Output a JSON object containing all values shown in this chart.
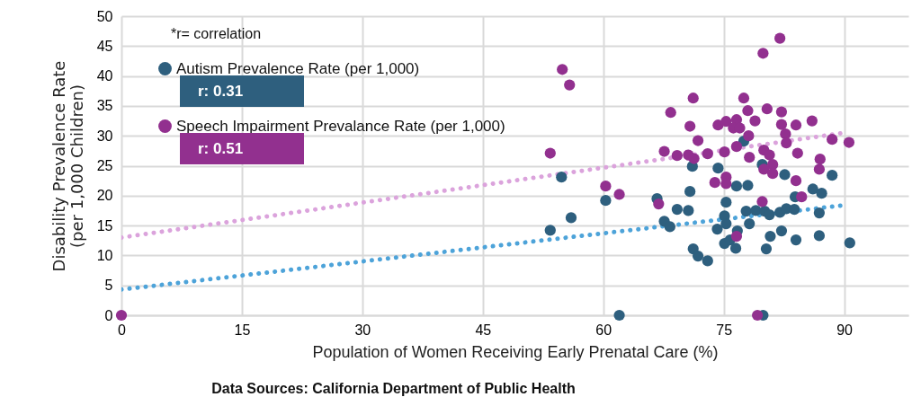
{
  "chart_data": {
    "type": "scatter",
    "xlabel": "Population of Women Receiving Early Prenatal Care (%)",
    "ylabel": "Disability Prevalence Rate (per 1,000 Children)",
    "xlim": [
      0,
      98
    ],
    "xticks": [
      0,
      15,
      30,
      45,
      60,
      75,
      90
    ],
    "ylim": [
      0,
      50
    ],
    "yticks": [
      0,
      5,
      10,
      15,
      20,
      25,
      30,
      35,
      40,
      45,
      50
    ],
    "grid": true,
    "legend": "top left",
    "marker": "circle",
    "annotations": [
      "*r= correlation",
      "r: 0.31",
      "r: 0.51",
      "Data Sources: California Department of Public Health"
    ],
    "series": [
      {
        "name": "Autism Prevalence Rate (per 1,000)",
        "color": "#2e5f7e",
        "x": [
          54.8,
          74.3,
          71.1,
          82.6,
          88.5,
          76.6,
          78.0,
          70.8,
          86.1,
          87.2,
          83.9,
          60.3,
          66.7,
          75.3,
          69.2,
          70.6,
          77.8,
          79.0,
          80.1,
          80.7,
          82.0,
          82.8,
          83.8,
          86.9,
          56.0,
          75.1,
          67.6,
          68.3,
          75.3,
          78.2,
          53.4,
          74.2,
          76.7,
          82.2,
          80.8,
          84.0,
          86.9,
          90.7,
          75.1,
          75.8,
          76.5,
          80.3,
          71.2,
          71.8,
          73.0,
          62.0,
          79.9,
          77.5,
          79.8
        ],
        "values": [
          23.1,
          24.6,
          24.9,
          23.5,
          23.4,
          21.6,
          21.7,
          20.7,
          21.1,
          20.4,
          19.8,
          19.2,
          19.5,
          18.9,
          17.7,
          17.5,
          17.4,
          17.5,
          17.4,
          16.8,
          17.2,
          17.8,
          17.7,
          17.1,
          16.3,
          16.6,
          15.7,
          14.8,
          15.3,
          15.3,
          14.2,
          14.4,
          14.1,
          14.1,
          13.2,
          12.6,
          13.3,
          12.1,
          12.0,
          12.6,
          11.2,
          11.1,
          11.1,
          9.9,
          9.1,
          0,
          0,
          29.1,
          25.2
        ]
      },
      {
        "name": "Speech Impairment Prevalance Rate (per 1,000)",
        "color": "#92308f",
        "x": [
          54.9,
          55.8,
          53.4,
          71.2,
          77.5,
          82.0,
          79.9,
          68.4,
          78.0,
          80.4,
          82.2,
          86.0,
          78.9,
          70.8,
          74.3,
          75.3,
          76.6,
          76.2,
          77.0,
          82.2,
          84.0,
          78.1,
          82.7,
          71.8,
          82.8,
          88.5,
          90.6,
          76.6,
          67.6,
          80.0,
          69.2,
          70.6,
          71.3,
          73.0,
          75.1,
          80.7,
          78.2,
          84.2,
          87.0,
          81.1,
          80.0,
          81.1,
          86.9,
          75.3,
          73.9,
          75.3,
          84.0,
          60.3,
          62.0,
          84.7,
          79.8,
          66.9,
          76.6,
          79.2,
          0
        ],
        "values": [
          41.1,
          38.5,
          27.1,
          36.3,
          36.3,
          46.3,
          43.8,
          33.9,
          34.2,
          34.5,
          34.0,
          32.5,
          32.5,
          31.6,
          31.8,
          32.4,
          32.7,
          31.3,
          31.3,
          31.9,
          31.8,
          30.0,
          30.3,
          29.2,
          28.8,
          29.4,
          28.9,
          28.2,
          27.4,
          27.6,
          26.7,
          26.8,
          26.2,
          27.0,
          27.3,
          26.8,
          26.4,
          27.1,
          26.1,
          25.2,
          24.4,
          23.7,
          24.4,
          23.1,
          22.2,
          22.0,
          22.5,
          21.6,
          20.2,
          19.8,
          19.0,
          18.6,
          13.2,
          0,
          0
        ]
      },
      {
        "type": "line",
        "color": "#4da3d9",
        "x": [
          0,
          90
        ],
        "values": [
          4.3,
          18.4
        ],
        "line_style": "dotted",
        "marker": "none"
      },
      {
        "type": "line",
        "color": "#dba3dc",
        "x": [
          0,
          90
        ],
        "values": [
          13,
          30.5
        ],
        "line_style": "dotted",
        "marker": "none"
      }
    ]
  }
}
